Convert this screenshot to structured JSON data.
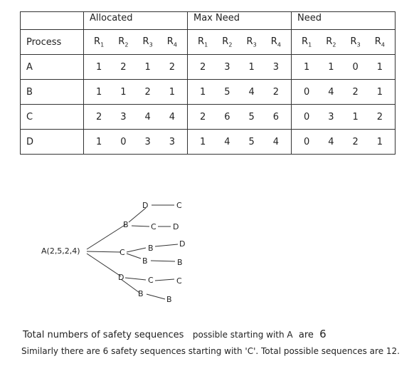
{
  "table": {
    "group_headers": [
      "Allocated",
      "Max Need",
      "Need"
    ],
    "process_header": "Process",
    "resources": [
      "R",
      "R",
      "R",
      "R"
    ],
    "resource_subscripts": [
      "1",
      "2",
      "3",
      "4"
    ],
    "rows": [
      {
        "process": "A",
        "allocated": [
          "1",
          "2",
          "1",
          "2"
        ],
        "max": [
          "2",
          "3",
          "1",
          "3"
        ],
        "need": [
          "1",
          "1",
          "0",
          "1"
        ]
      },
      {
        "process": "B",
        "allocated": [
          "1",
          "1",
          "2",
          "1"
        ],
        "max": [
          "1",
          "5",
          "4",
          "2"
        ],
        "need": [
          "0",
          "4",
          "2",
          "1"
        ]
      },
      {
        "process": "C",
        "allocated": [
          "2",
          "3",
          "4",
          "4"
        ],
        "max": [
          "2",
          "6",
          "5",
          "6"
        ],
        "need": [
          "0",
          "3",
          "1",
          "2"
        ]
      },
      {
        "process": "D",
        "allocated": [
          "1",
          "0",
          "3",
          "3"
        ],
        "max": [
          "1",
          "4",
          "5",
          "4"
        ],
        "need": [
          "0",
          "4",
          "2",
          "1"
        ]
      }
    ]
  },
  "tree": {
    "root": "A(2,5,2,4)",
    "nodes": [
      "B",
      "C",
      "D",
      "D",
      "C",
      "C",
      "D",
      "B",
      "D",
      "B",
      "B",
      "C",
      "C",
      "B"
    ]
  },
  "notes": {
    "line1_a": "Total numbers of safety sequences",
    "line1_b": "possible starting with A",
    "line1_c": "are",
    "line1_d": "6",
    "line2": "Similarly there are 6 safety sequences starting with 'C'. Total possible sequences are 12."
  }
}
